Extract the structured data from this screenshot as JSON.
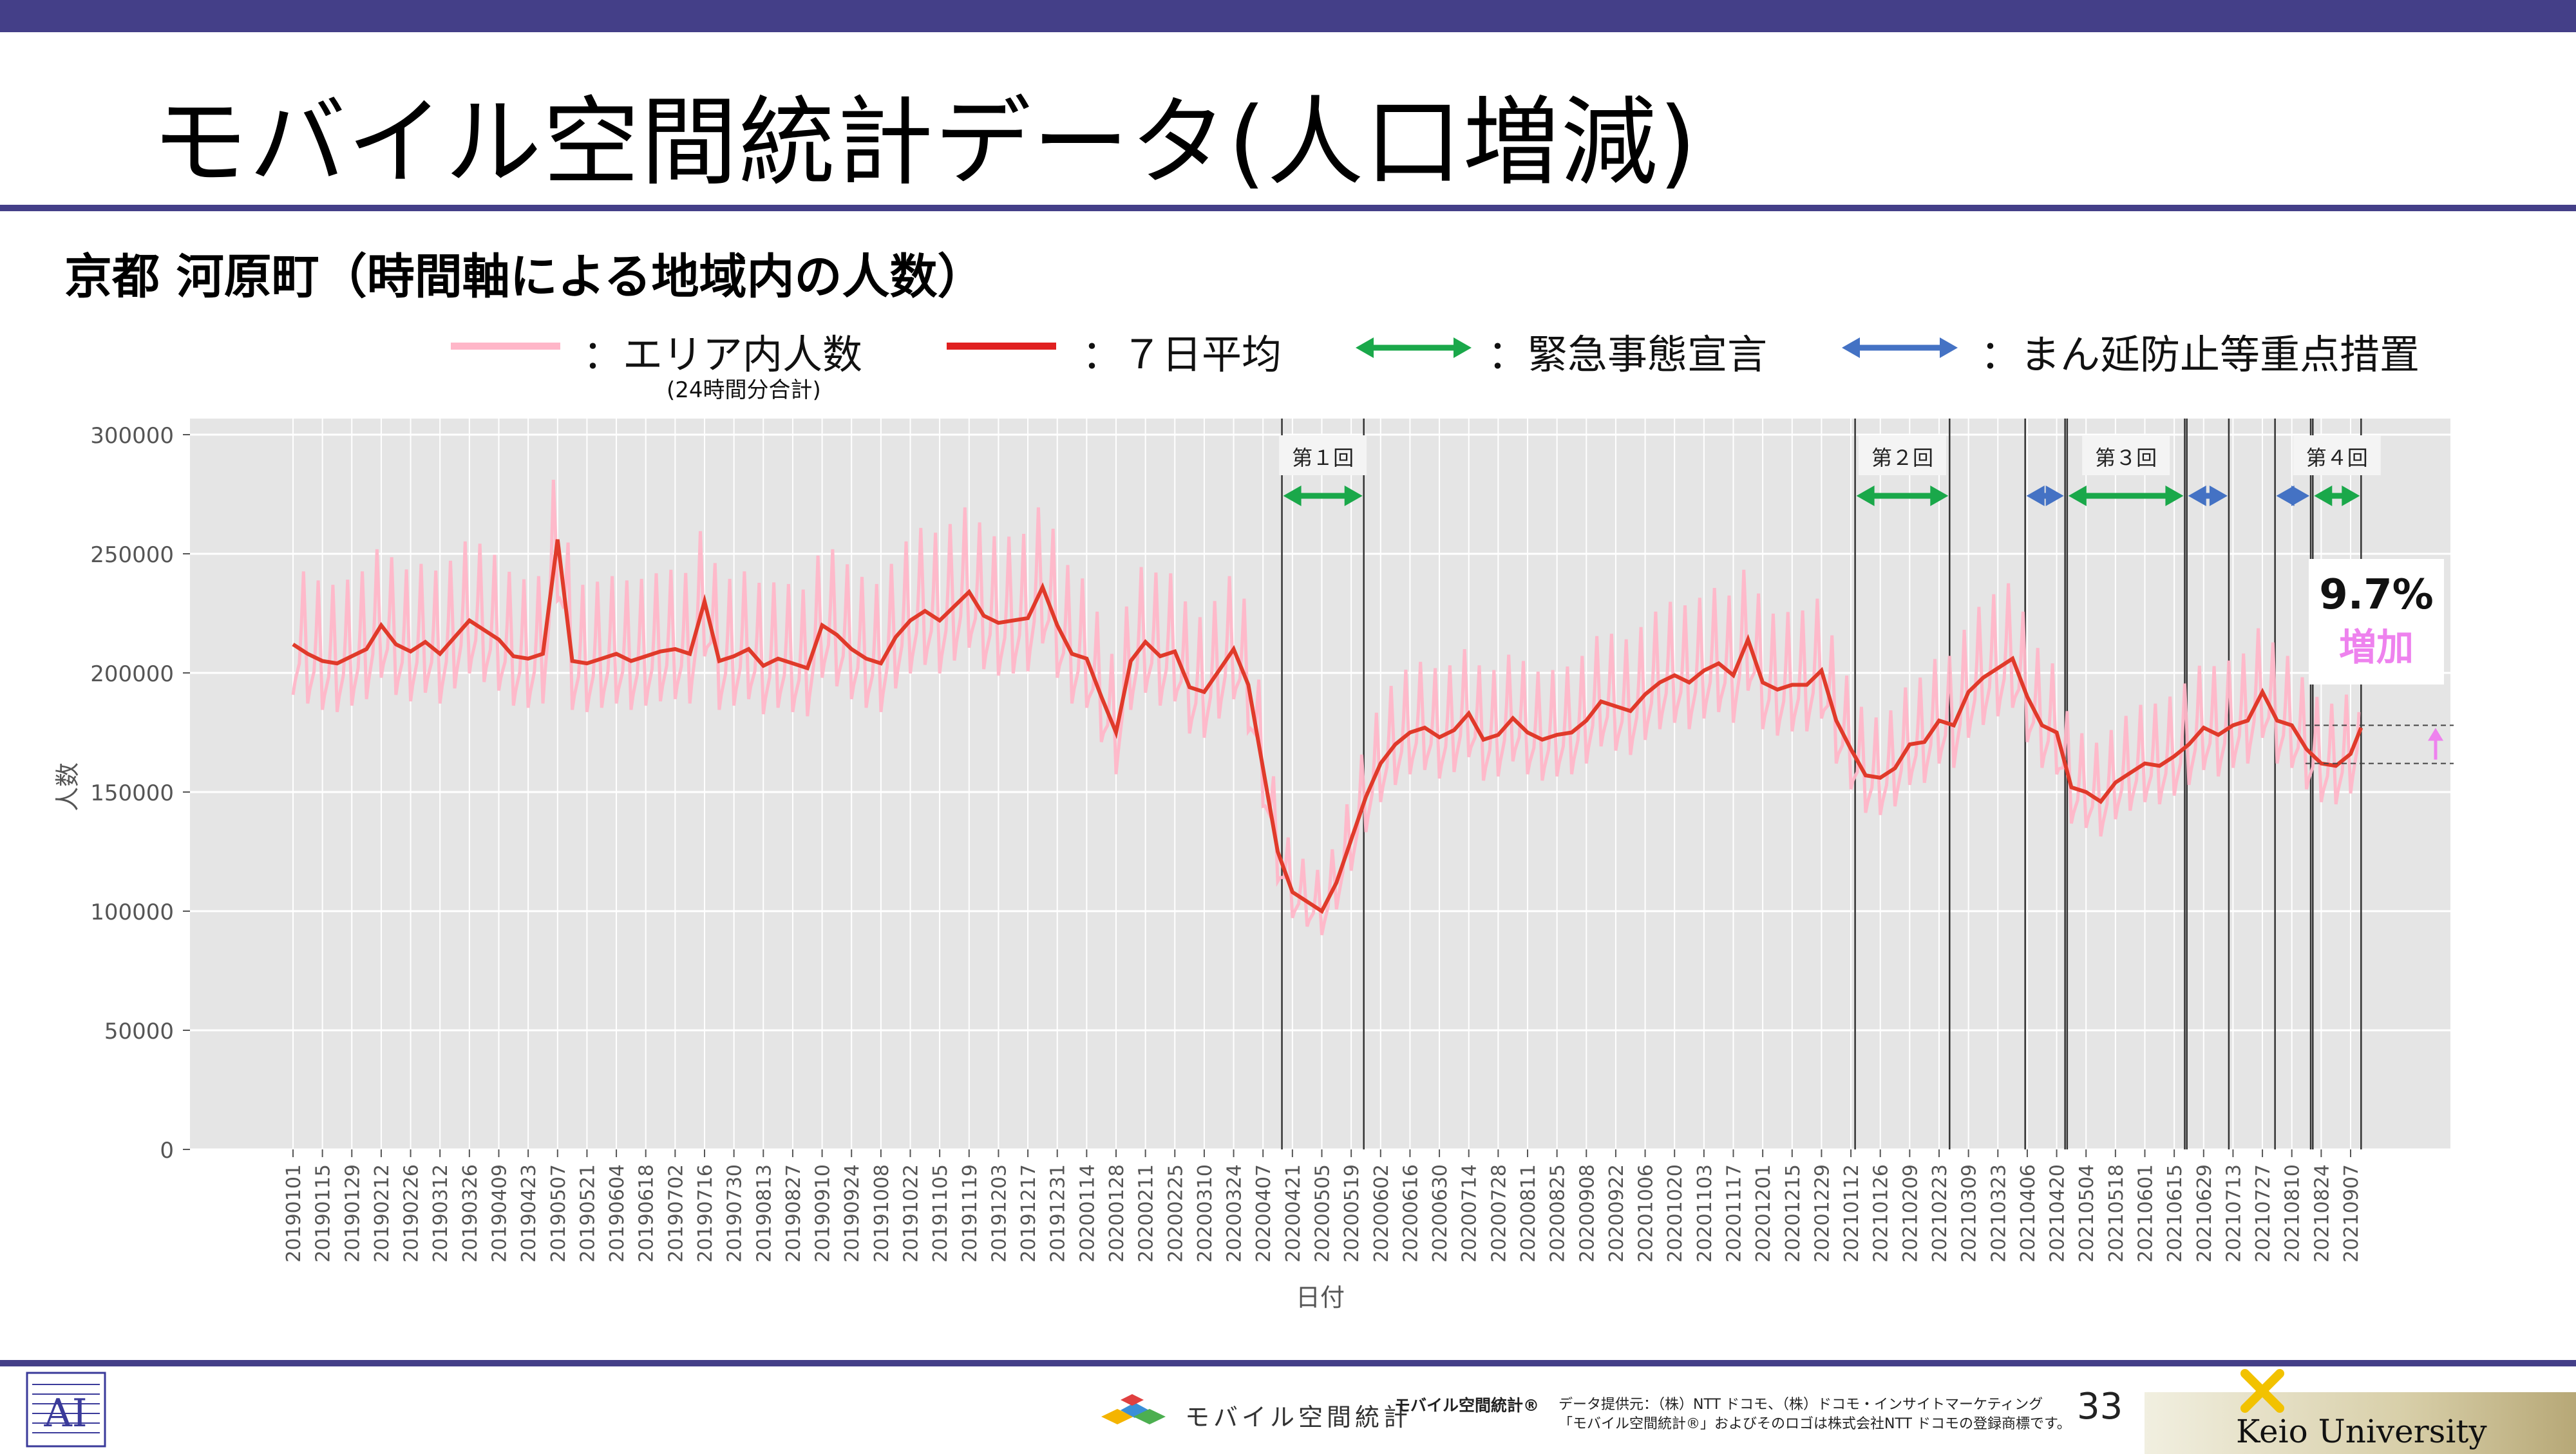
{
  "slide": {
    "title": "モバイル空間統計データ(人口増減)",
    "subtitle": "京都 河原町（時間軸による地域内の人数）",
    "page_number": "33"
  },
  "legend": {
    "items": [
      {
        "label": "：エリア内人数",
        "note": "(24時間分合計)",
        "color": "#ffb6c8",
        "kind": "line"
      },
      {
        "label": "：７日平均",
        "color": "#e02020",
        "kind": "line"
      },
      {
        "label": "：緊急事態宣言",
        "color": "#1aa84a",
        "kind": "arrow"
      },
      {
        "label": "：まん延防止等重点措置",
        "color": "#4472c4",
        "kind": "arrow"
      }
    ]
  },
  "annotation": {
    "line1": "9.7%",
    "line2": "増加",
    "line2_color": "#ee82ee"
  },
  "footer": {
    "brand": "モバイル空間統計",
    "brand_registered": "モバイル空間統計®",
    "credit_line1": "データ提供元：（株）NTT ドコモ、（株）ドコモ・インサイトマーケティング",
    "credit_line2": "「モバイル空間統計®」およびそのロゴは株式会社NTT ドコモの登録商標です。",
    "university": "Keio University"
  },
  "chart_data": {
    "type": "line",
    "xlabel": "日付",
    "ylabel": "人数",
    "ylim": [
      0,
      300000
    ],
    "yticks": [
      0,
      50000,
      100000,
      150000,
      200000,
      250000,
      300000
    ],
    "ytick_labels": [
      "0",
      "50000",
      "100000",
      "150000",
      "200000",
      "250000",
      "300000"
    ],
    "grid": true,
    "xtick_labels": [
      "20190101",
      "20190115",
      "20190129",
      "20190212",
      "20190226",
      "20190312",
      "20190326",
      "20190409",
      "20190423",
      "20190507",
      "20190521",
      "20190604",
      "20190618",
      "20190702",
      "20190716",
      "20190730",
      "20190813",
      "20190827",
      "20190910",
      "20190924",
      "20191008",
      "20191022",
      "20191105",
      "20191119",
      "20191203",
      "20191217",
      "20191231",
      "20200114",
      "20200128",
      "20200211",
      "20200225",
      "20200310",
      "20200324",
      "20200407",
      "20200421",
      "20200505",
      "20200519",
      "20200602",
      "20200616",
      "20200630",
      "20200714",
      "20200728",
      "20200811",
      "20200825",
      "20200908",
      "20200922",
      "20201006",
      "20201020",
      "20201103",
      "20201117",
      "20201201",
      "20201215",
      "20201229",
      "20210112",
      "20210126",
      "20210209",
      "20210223",
      "20210309",
      "20210323",
      "20210406",
      "20210420",
      "20210504",
      "20210518",
      "20210601",
      "20210615",
      "20210629",
      "20210713",
      "20210727",
      "20210810",
      "20210824",
      "20210907"
    ],
    "series": [
      {
        "name": "：７日平均",
        "color": "#e03a2a",
        "x": [
          "20190101",
          "20190108",
          "20190115",
          "20190122",
          "20190129",
          "20190205",
          "20190212",
          "20190219",
          "20190226",
          "20190305",
          "20190312",
          "20190319",
          "20190326",
          "20190402",
          "20190409",
          "20190416",
          "20190423",
          "20190430",
          "20190507",
          "20190514",
          "20190521",
          "20190528",
          "20190604",
          "20190611",
          "20190618",
          "20190625",
          "20190702",
          "20190709",
          "20190716",
          "20190723",
          "20190730",
          "20190806",
          "20190813",
          "20190820",
          "20190827",
          "20190903",
          "20190910",
          "20190917",
          "20190924",
          "20191001",
          "20191008",
          "20191015",
          "20191022",
          "20191029",
          "20191105",
          "20191112",
          "20191119",
          "20191126",
          "20191203",
          "20191210",
          "20191217",
          "20191224",
          "20191231",
          "20200107",
          "20200114",
          "20200121",
          "20200128",
          "20200204",
          "20200211",
          "20200218",
          "20200225",
          "20200303",
          "20200310",
          "20200317",
          "20200324",
          "20200331",
          "20200407",
          "20200414",
          "20200421",
          "20200428",
          "20200505",
          "20200512",
          "20200519",
          "20200526",
          "20200602",
          "20200609",
          "20200616",
          "20200623",
          "20200630",
          "20200707",
          "20200714",
          "20200721",
          "20200728",
          "20200804",
          "20200811",
          "20200818",
          "20200825",
          "20200901",
          "20200908",
          "20200915",
          "20200922",
          "20200929",
          "20201006",
          "20201013",
          "20201020",
          "20201027",
          "20201103",
          "20201110",
          "20201117",
          "20201124",
          "20201201",
          "20201208",
          "20201215",
          "20201222",
          "20201229",
          "20210105",
          "20210112",
          "20210119",
          "20210126",
          "20210202",
          "20210209",
          "20210216",
          "20210223",
          "20210302",
          "20210309",
          "20210316",
          "20210323",
          "20210330",
          "20210406",
          "20210413",
          "20210420",
          "20210427",
          "20210504",
          "20210511",
          "20210518",
          "20210525",
          "20210601",
          "20210608",
          "20210615",
          "20210622",
          "20210629",
          "20210706",
          "20210713",
          "20210720",
          "20210727",
          "20210803",
          "20210810",
          "20210817",
          "20210824",
          "20210831",
          "20210907",
          "20210912"
        ],
        "values": [
          212000,
          208000,
          205000,
          204000,
          207000,
          210000,
          220000,
          212000,
          209000,
          213000,
          208000,
          215000,
          222000,
          218000,
          214000,
          207000,
          206000,
          208000,
          256000,
          205000,
          204000,
          206000,
          208000,
          205000,
          207000,
          209000,
          210000,
          208000,
          230000,
          205000,
          207000,
          210000,
          203000,
          206000,
          204000,
          202000,
          220000,
          216000,
          210000,
          206000,
          204000,
          215000,
          222000,
          226000,
          222000,
          228000,
          234000,
          224000,
          221000,
          222000,
          223000,
          236000,
          220000,
          208000,
          206000,
          190000,
          175000,
          205000,
          213000,
          207000,
          209000,
          194000,
          192000,
          201000,
          210000,
          195000,
          160000,
          125000,
          108000,
          104000,
          100000,
          112000,
          130000,
          148000,
          162000,
          170000,
          175000,
          177000,
          173000,
          176000,
          183000,
          172000,
          174000,
          181000,
          175000,
          172000,
          174000,
          175000,
          180000,
          188000,
          186000,
          184000,
          191000,
          196000,
          199000,
          196000,
          201000,
          204000,
          199000,
          214000,
          196000,
          193000,
          195000,
          195000,
          201000,
          180000,
          168000,
          157000,
          156000,
          160000,
          170000,
          171000,
          180000,
          178000,
          192000,
          198000,
          202000,
          206000,
          190000,
          178000,
          175000,
          152000,
          150000,
          146000,
          154000,
          158000,
          162000,
          161000,
          165000,
          170000,
          177000,
          174000,
          178000,
          180000,
          192000,
          180000,
          178000,
          168000,
          162000,
          161000,
          166000,
          177000
        ]
      }
    ],
    "area_counts_series": {
      "name": "：エリア内人数",
      "note": "(24時間分合計)",
      "color": "#ffb6c8",
      "description_of_range": "daily values oscillating around the 7-day average"
    },
    "periods": [
      {
        "label": "第１回",
        "type": "緊急事態宣言",
        "start": "20200416",
        "end": "20200525"
      },
      {
        "label": "第２回",
        "type": "緊急事態宣言",
        "start": "20210114",
        "end": "20210228"
      },
      {
        "label": "",
        "type": "まん延防止等重点措置",
        "start": "20210405",
        "end": "20210424"
      },
      {
        "label": "第３回",
        "type": "緊急事態宣言",
        "start": "20210425",
        "end": "20210620"
      },
      {
        "label": "",
        "type": "まん延防止等重点措置",
        "start": "20210621",
        "end": "20210711"
      },
      {
        "label": "",
        "type": "まん延防止等重点措置",
        "start": "20210802",
        "end": "20210819"
      },
      {
        "label": "第４回",
        "type": "緊急事態宣言",
        "start": "20210820",
        "end": "20210912"
      }
    ],
    "reference_levels": [
      178000,
      162000
    ]
  }
}
